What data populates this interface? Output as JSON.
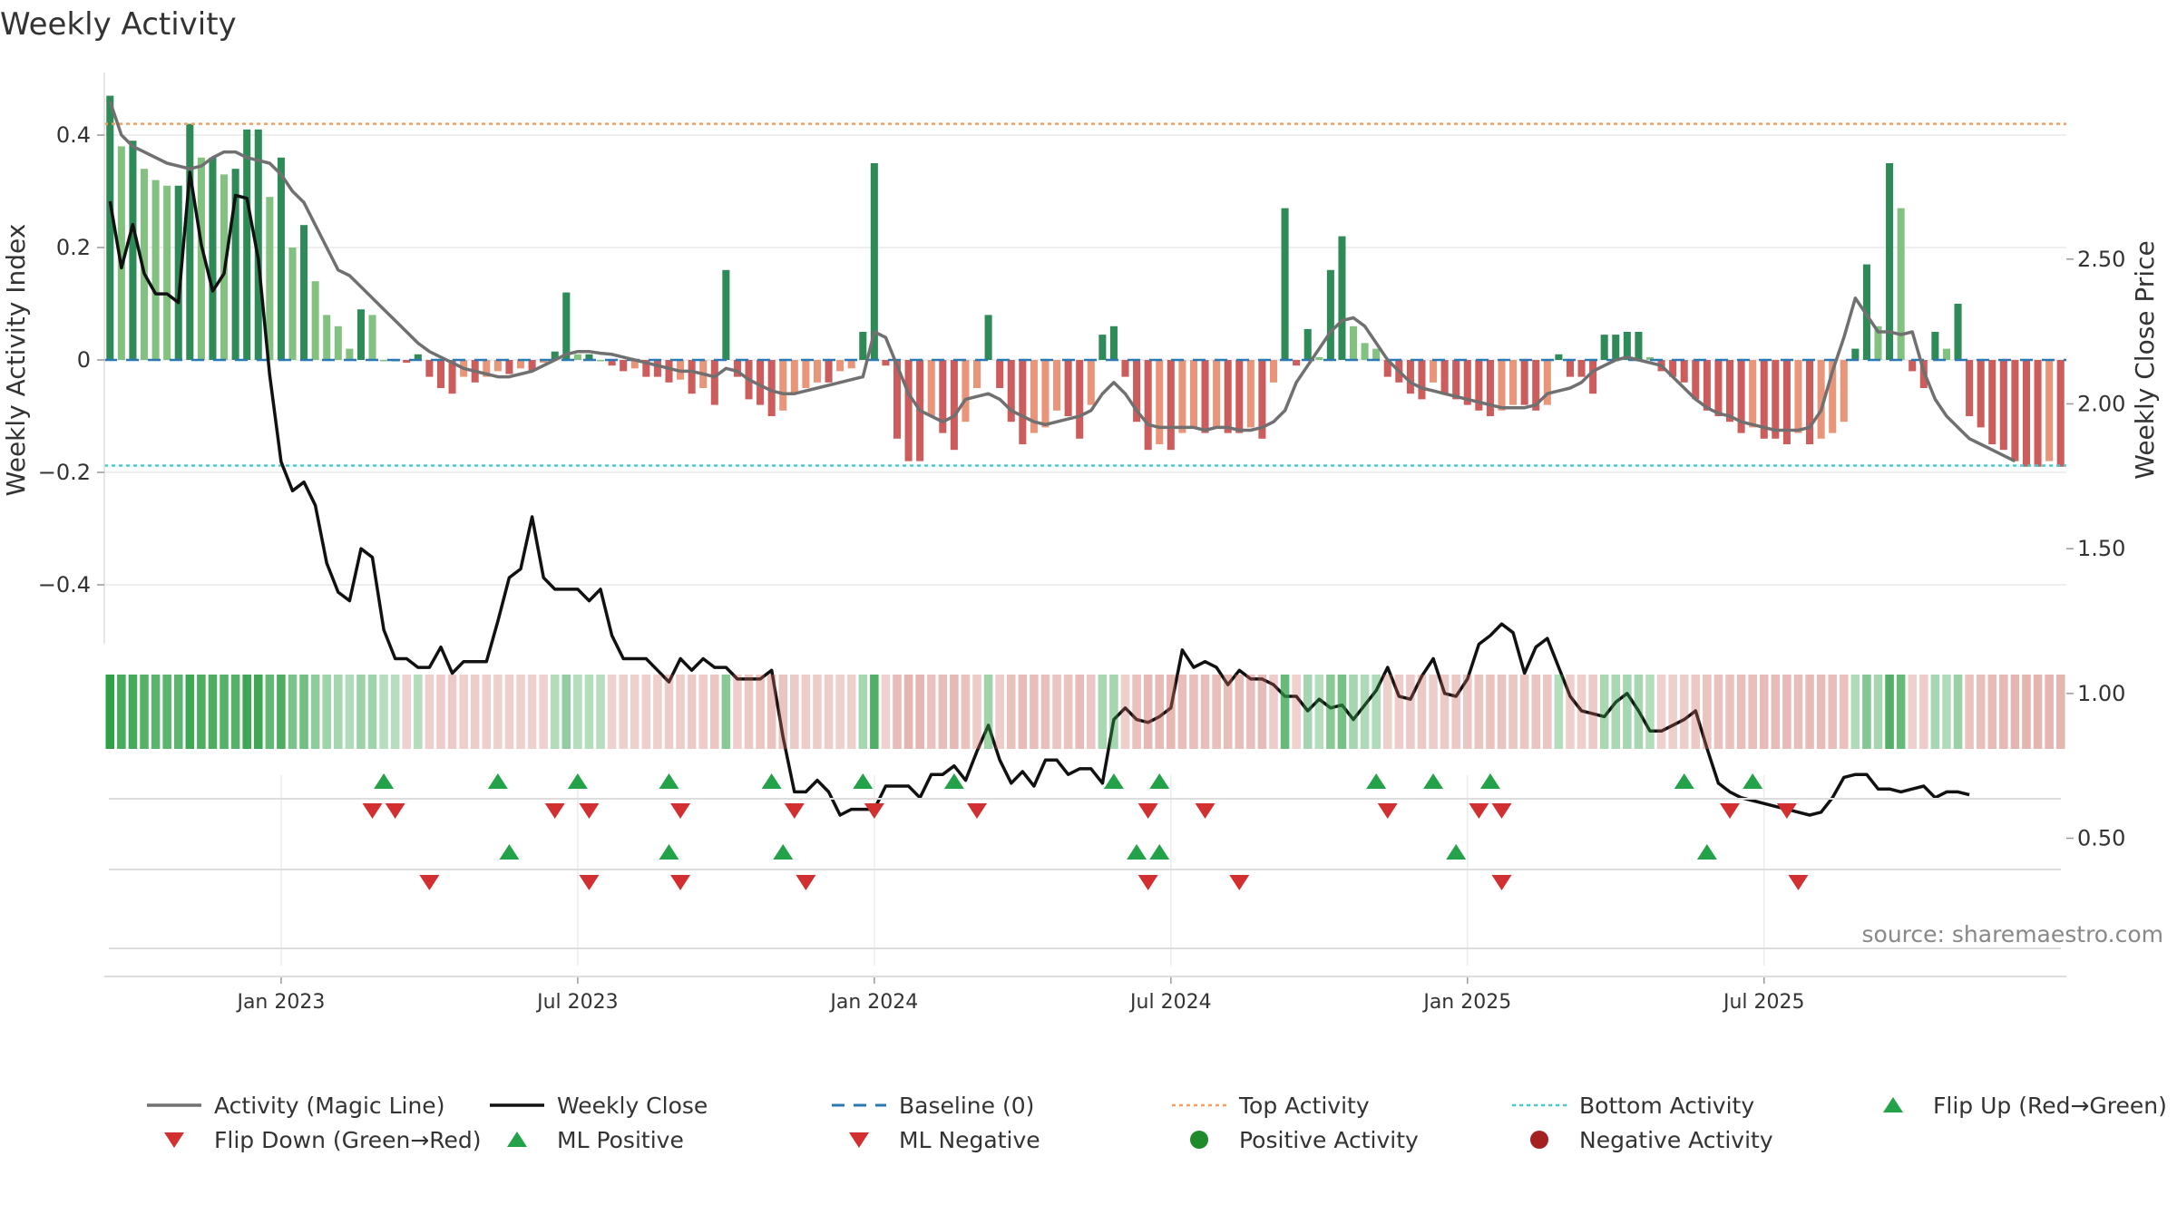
{
  "chart_data": {
    "type": "bar",
    "title": "Weekly Activity",
    "ylabel": "Weekly Activity Index",
    "y2label": "Weekly Close Price",
    "source": "source: sharemaestro.com",
    "ylim": [
      -0.5,
      0.5
    ],
    "y2lim": [
      0.37,
      2.94
    ],
    "yticks": [
      0.4,
      0.2,
      0,
      -0.2,
      -0.4
    ],
    "ytick_labels": [
      "0.4",
      "0.2",
      "0",
      "−0.2",
      "−0.4"
    ],
    "y2ticks": [
      2.5,
      2.0,
      1.5,
      1.0,
      0.5
    ],
    "y2tick_labels": [
      "2.50",
      "2.00",
      "1.50",
      "1.00",
      "0.50"
    ],
    "n_weeks": 158,
    "x_ticks": [
      {
        "week": 15,
        "label": "Jan 2023"
      },
      {
        "week": 41,
        "label": "Jul 2023"
      },
      {
        "week": 67,
        "label": "Jan 2024"
      },
      {
        "week": 93,
        "label": "Jul 2024"
      },
      {
        "week": 119,
        "label": "Jan 2025"
      },
      {
        "week": 145,
        "label": "Jul 2025"
      }
    ],
    "top_activity": 0.42,
    "bottom_activity": -0.188,
    "activity": [
      0.47,
      0.38,
      0.39,
      0.34,
      0.32,
      0.31,
      0.31,
      0.42,
      0.36,
      0.36,
      0.33,
      0.34,
      0.41,
      0.41,
      0.29,
      0.36,
      0.2,
      0.24,
      0.14,
      0.08,
      0.06,
      0.02,
      0.09,
      0.08,
      0.0,
      0.0,
      -0.005,
      0.01,
      -0.03,
      -0.05,
      -0.06,
      -0.03,
      -0.04,
      -0.03,
      -0.02,
      -0.025,
      -0.015,
      -0.02,
      -0.005,
      0.015,
      0.12,
      0.01,
      0.01,
      0.0,
      -0.01,
      -0.02,
      -0.015,
      -0.03,
      -0.03,
      -0.04,
      -0.035,
      -0.06,
      -0.05,
      -0.08,
      0.16,
      -0.03,
      -0.07,
      -0.08,
      -0.1,
      -0.09,
      -0.06,
      -0.05,
      -0.04,
      -0.04,
      -0.02,
      -0.015,
      0.05,
      0.35,
      -0.01,
      -0.14,
      -0.18,
      -0.18,
      -0.1,
      -0.13,
      -0.16,
      -0.11,
      -0.05,
      0.08,
      -0.05,
      -0.11,
      -0.15,
      -0.13,
      -0.12,
      -0.09,
      -0.1,
      -0.14,
      -0.08,
      0.045,
      0.06,
      -0.03,
      -0.11,
      -0.16,
      -0.15,
      -0.16,
      -0.13,
      -0.12,
      -0.13,
      -0.12,
      -0.13,
      -0.13,
      -0.12,
      -0.14,
      -0.04,
      0.27,
      -0.01,
      0.055,
      0.005,
      0.16,
      0.22,
      0.06,
      0.03,
      0.02,
      -0.03,
      -0.04,
      -0.06,
      -0.07,
      -0.04,
      -0.06,
      -0.07,
      -0.08,
      -0.09,
      -0.1,
      -0.09,
      -0.08,
      -0.08,
      -0.09,
      -0.08,
      0.01,
      -0.03,
      -0.03,
      -0.06,
      0.045,
      0.045,
      0.05,
      0.05,
      0.005,
      -0.02,
      -0.03,
      -0.04,
      -0.07,
      -0.09,
      -0.1,
      -0.11,
      -0.13,
      -0.12,
      -0.14,
      -0.14,
      -0.15,
      -0.13,
      -0.15,
      -0.14,
      -0.13,
      -0.11,
      0.02,
      0.17,
      0.06,
      0.35,
      0.27
    ],
    "tail_activity": [
      -0.02,
      -0.05,
      0.05,
      0.02,
      0.1,
      -0.1,
      -0.12,
      -0.15,
      -0.16,
      -0.18,
      -0.19,
      -0.19,
      -0.18,
      -0.19
    ],
    "magic_line": [
      0.46,
      0.4,
      0.38,
      0.37,
      0.36,
      0.35,
      0.345,
      0.34,
      0.345,
      0.36,
      0.37,
      0.37,
      0.36,
      0.355,
      0.35,
      0.33,
      0.3,
      0.28,
      0.24,
      0.2,
      0.16,
      0.15,
      0.13,
      0.11,
      0.09,
      0.07,
      0.05,
      0.03,
      0.015,
      0.005,
      -0.005,
      -0.015,
      -0.02,
      -0.025,
      -0.03,
      -0.03,
      -0.025,
      -0.02,
      -0.01,
      0.0,
      0.01,
      0.015,
      0.015,
      0.012,
      0.01,
      0.005,
      0.0,
      -0.005,
      -0.01,
      -0.015,
      -0.02,
      -0.02,
      -0.025,
      -0.03,
      -0.015,
      -0.02,
      -0.035,
      -0.045,
      -0.055,
      -0.06,
      -0.06,
      -0.055,
      -0.05,
      -0.045,
      -0.04,
      -0.035,
      -0.03,
      0.05,
      0.04,
      -0.01,
      -0.06,
      -0.09,
      -0.1,
      -0.11,
      -0.1,
      -0.07,
      -0.065,
      -0.06,
      -0.07,
      -0.09,
      -0.1,
      -0.11,
      -0.115,
      -0.11,
      -0.105,
      -0.1,
      -0.09,
      -0.06,
      -0.04,
      -0.06,
      -0.09,
      -0.115,
      -0.12,
      -0.12,
      -0.12,
      -0.12,
      -0.125,
      -0.12,
      -0.12,
      -0.125,
      -0.125,
      -0.12,
      -0.11,
      -0.09,
      -0.04,
      -0.01,
      0.02,
      0.05,
      0.07,
      0.075,
      0.06,
      0.03,
      0.0,
      -0.02,
      -0.04,
      -0.05,
      -0.055,
      -0.06,
      -0.065,
      -0.07,
      -0.075,
      -0.08,
      -0.085,
      -0.085,
      -0.085,
      -0.08,
      -0.06,
      -0.055,
      -0.05,
      -0.04,
      -0.02,
      -0.01,
      0.0,
      0.005,
      0.0,
      -0.005,
      -0.01,
      -0.03,
      -0.05,
      -0.07,
      -0.085,
      -0.095,
      -0.1,
      -0.11,
      -0.115,
      -0.12,
      -0.125,
      -0.125,
      -0.125,
      -0.12,
      -0.09,
      -0.02,
      0.04,
      0.11,
      0.08,
      0.05,
      0.05,
      0.045,
      0.05,
      -0.02,
      -0.07,
      -0.1,
      -0.12,
      -0.14,
      -0.15,
      -0.16,
      -0.17,
      -0.18
    ],
    "close": [
      2.7,
      2.47,
      2.62,
      2.45,
      2.38,
      2.38,
      2.35,
      2.8,
      2.55,
      2.39,
      2.45,
      2.72,
      2.71,
      2.5,
      2.1,
      1.8,
      1.7,
      1.73,
      1.65,
      1.45,
      1.35,
      1.32,
      1.5,
      1.47,
      1.22,
      1.12,
      1.12,
      1.09,
      1.09,
      1.16,
      1.07,
      1.11,
      1.11,
      1.11,
      1.25,
      1.4,
      1.43,
      1.61,
      1.4,
      1.36,
      1.36,
      1.36,
      1.32,
      1.36,
      1.2,
      1.12,
      1.12,
      1.12,
      1.08,
      1.04,
      1.12,
      1.08,
      1.12,
      1.09,
      1.09,
      1.05,
      1.05,
      1.05,
      1.08,
      0.85,
      0.66,
      0.66,
      0.7,
      0.66,
      0.58,
      0.6,
      0.6,
      0.6,
      0.68,
      0.68,
      0.68,
      0.64,
      0.72,
      0.72,
      0.75,
      0.7,
      0.8,
      0.89,
      0.77,
      0.69,
      0.73,
      0.68,
      0.77,
      0.77,
      0.72,
      0.74,
      0.74,
      0.69,
      0.91,
      0.95,
      0.91,
      0.9,
      0.92,
      0.95,
      1.15,
      1.09,
      1.11,
      1.09,
      1.03,
      1.08,
      1.05,
      1.05,
      1.03,
      0.99,
      0.99,
      0.94,
      0.98,
      0.95,
      0.96,
      0.91,
      0.96,
      1.01,
      1.09,
      0.99,
      0.98,
      1.06,
      1.12,
      1.0,
      0.99,
      1.05,
      1.17,
      1.2,
      1.24,
      1.21,
      1.07,
      1.16,
      1.19,
      1.09,
      0.99,
      0.94,
      0.93,
      0.92,
      0.97,
      1.0,
      0.94,
      0.87,
      0.87,
      0.89,
      0.91,
      0.94,
      0.81,
      0.69,
      0.66,
      0.64,
      0.63,
      0.62,
      0.61,
      0.6,
      0.59,
      0.58,
      0.59,
      0.64,
      0.71,
      0.72,
      0.72,
      0.67,
      0.67,
      0.66
    ],
    "close_tail": [
      0.67,
      0.68,
      0.64,
      0.66,
      0.66,
      0.65
    ],
    "flip_up": [
      24,
      34,
      41,
      49,
      58,
      66,
      74,
      88,
      92,
      111,
      116,
      121,
      138,
      144
    ],
    "flip_down": [
      23,
      25,
      39,
      42,
      50,
      60,
      67,
      76,
      91,
      96,
      112,
      120,
      122,
      142,
      147
    ],
    "ml_positive": [
      35,
      49,
      59,
      90,
      92,
      118,
      140
    ],
    "ml_negative": [
      28,
      42,
      50,
      61,
      91,
      99,
      122,
      148
    ],
    "legend": [
      {
        "label": "Activity (Magic Line)",
        "icon": "solid-line",
        "color": "#707070"
      },
      {
        "label": "Weekly Close",
        "icon": "solid-line",
        "color": "#111111"
      },
      {
        "label": "Baseline (0)",
        "icon": "dashed-line",
        "color": "#2a79b5"
      },
      {
        "label": "Top Activity",
        "icon": "dotted-line",
        "color": "#f0a060"
      },
      {
        "label": "Bottom Activity",
        "icon": "dotted-line",
        "color": "#40d0d0"
      },
      {
        "label": "Flip Up (Red→Green)",
        "icon": "triangle-up",
        "color": "#24a24a"
      },
      {
        "label": "Flip Down (Green→Red)",
        "icon": "triangle-down",
        "color": "#d23030"
      },
      {
        "label": "ML Positive",
        "icon": "triangle-up",
        "color": "#24a24a"
      },
      {
        "label": "ML Negative",
        "icon": "triangle-down",
        "color": "#d23030"
      },
      {
        "label": "Positive Activity",
        "icon": "dot",
        "color": "#1e8a2a"
      },
      {
        "label": "Negative Activity",
        "icon": "dot",
        "color": "#a52020"
      }
    ],
    "colors": {
      "pos_strong": "#2e8b57",
      "pos_light": "#82c17f",
      "neg_strong": "#cd5c5c",
      "neg_light": "#e8957a",
      "magic": "#707070",
      "close": "#111111",
      "baseline": "#2a79b5",
      "top": "#f0a060",
      "bottom": "#40d0d0",
      "up": "#24a24a",
      "down": "#d23030"
    }
  }
}
